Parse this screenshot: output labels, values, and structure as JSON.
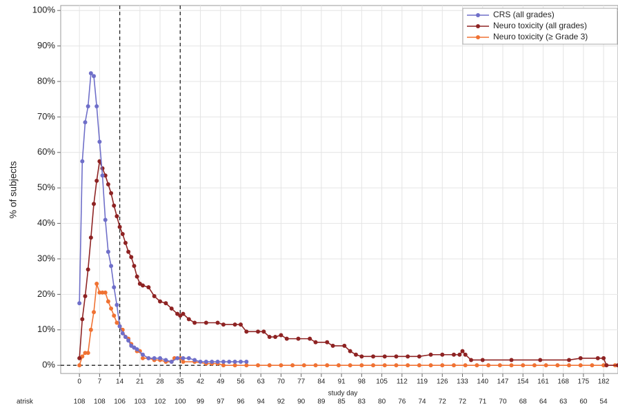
{
  "chart_data": {
    "type": "line",
    "y_label": "% of subjects",
    "x_label": "study day",
    "atrisk_label": "atrisk",
    "xlim": [
      -6.5,
      187
    ],
    "ylim": [
      -2.3,
      101.4
    ],
    "xticks": [
      0,
      7,
      14,
      21,
      28,
      35,
      42,
      49,
      56,
      63,
      70,
      77,
      84,
      91,
      98,
      105,
      112,
      119,
      126,
      133,
      140,
      147,
      154,
      161,
      168,
      175,
      182
    ],
    "yticks": [
      {
        "value": 0,
        "label": "0%"
      },
      {
        "value": 10,
        "label": "10%"
      },
      {
        "value": 20,
        "label": "20%"
      },
      {
        "value": 30,
        "label": "30%"
      },
      {
        "value": 40,
        "label": "40%"
      },
      {
        "value": 50,
        "label": "50%"
      },
      {
        "value": 60,
        "label": "60%"
      },
      {
        "value": 70,
        "label": "70%"
      },
      {
        "value": 80,
        "label": "80%"
      },
      {
        "value": 90,
        "label": "90%"
      },
      {
        "value": 100,
        "label": "100%"
      }
    ],
    "at_risk": [
      108,
      108,
      106,
      103,
      102,
      100,
      99,
      97,
      96,
      94,
      92,
      90,
      89,
      85,
      83,
      80,
      76,
      74,
      72,
      72,
      71,
      70,
      68,
      64,
      63,
      60,
      54
    ],
    "vlines": [
      14,
      35
    ],
    "hline": 0,
    "grid": true,
    "legend": "upper right",
    "series": [
      {
        "name": "CRS (all grades)",
        "color": "#6f6fc9",
        "x": [
          0,
          1,
          2,
          3,
          4,
          5,
          6,
          7,
          8,
          9,
          10,
          11,
          12,
          13,
          14,
          15,
          16,
          17,
          18,
          19,
          20,
          22,
          24,
          26,
          28,
          30,
          32,
          34,
          36,
          38,
          40,
          42,
          44,
          46,
          48,
          50,
          52,
          54,
          56,
          58
        ],
        "values": [
          17.5,
          57.5,
          68.5,
          73,
          82.3,
          81.5,
          73,
          63,
          53.5,
          41,
          32,
          28,
          22,
          17,
          11,
          9,
          8,
          7,
          5.5,
          5,
          4.5,
          3,
          2,
          2,
          2,
          1.5,
          1,
          2,
          2,
          2,
          1.5,
          1,
          1,
          1,
          1,
          1,
          1,
          1,
          1,
          1
        ]
      },
      {
        "name": "Neuro toxicity (all grades)",
        "color": "#8e2323",
        "x": [
          0,
          1,
          2,
          3,
          4,
          5,
          6,
          7,
          8,
          9,
          10,
          11,
          12,
          13,
          14,
          15,
          16,
          17,
          18,
          19,
          20,
          21,
          22,
          24,
          26,
          28,
          30,
          32,
          34,
          35,
          36,
          38,
          40,
          44,
          48,
          50,
          54,
          56,
          58,
          62,
          64,
          66,
          68,
          70,
          72,
          76,
          80,
          82,
          86,
          88,
          92,
          94,
          96,
          98,
          102,
          106,
          110,
          114,
          118,
          122,
          126,
          130,
          132,
          133,
          134,
          136,
          140,
          150,
          160,
          170,
          174,
          180,
          182,
          183,
          187
        ],
        "values": [
          2,
          13,
          19.5,
          27,
          36,
          45.5,
          52,
          57.5,
          55.5,
          53.5,
          51,
          48.5,
          45,
          42,
          39,
          37,
          34.5,
          32,
          30.5,
          28,
          25,
          23,
          22.5,
          22,
          19.5,
          18,
          17.5,
          16,
          14.5,
          14,
          14.5,
          13,
          12,
          12,
          12,
          11.5,
          11.5,
          11.5,
          9.5,
          9.5,
          9.5,
          8,
          8,
          8.5,
          7.5,
          7.5,
          7.5,
          6.5,
          6.5,
          5.5,
          5.5,
          4,
          3,
          2.5,
          2.5,
          2.5,
          2.5,
          2.5,
          2.5,
          3,
          3,
          3,
          3,
          4,
          3,
          1.5,
          1.5,
          1.5,
          1.5,
          1.5,
          2,
          2,
          2,
          0,
          0
        ]
      },
      {
        "name": "Neuro toxicity (≥ Grade 3)",
        "color": "#f07233",
        "x": [
          0,
          1,
          2,
          3,
          4,
          5,
          6,
          7,
          8,
          9,
          10,
          11,
          12,
          13,
          14,
          15,
          16,
          17,
          18,
          19,
          20,
          21,
          22,
          24,
          26,
          28,
          30,
          32,
          33,
          35,
          36,
          40,
          44,
          46,
          48,
          50,
          54,
          58,
          62,
          66,
          70,
          74,
          78,
          82,
          86,
          90,
          94,
          98,
          102,
          106,
          110,
          114,
          118,
          122,
          126,
          130,
          134,
          138,
          142,
          146,
          150,
          154,
          158,
          162,
          166,
          170,
          174,
          178,
          182,
          186
        ],
        "values": [
          0,
          2.5,
          3.5,
          3.5,
          10,
          15,
          23,
          20.5,
          20.5,
          20.5,
          18,
          16,
          14,
          12,
          11,
          10,
          8,
          7.5,
          6,
          5,
          4,
          4,
          2,
          2,
          1.5,
          1.5,
          1,
          1,
          2,
          2,
          1,
          1,
          0.5,
          0.5,
          0.5,
          0,
          0,
          0,
          0,
          0,
          0,
          0,
          0,
          0,
          0,
          0,
          0,
          0,
          0,
          0,
          0,
          0,
          0,
          0,
          0,
          0,
          0,
          0,
          0,
          0,
          0,
          0,
          0,
          0,
          0,
          0,
          0,
          0,
          0,
          0
        ]
      }
    ]
  }
}
